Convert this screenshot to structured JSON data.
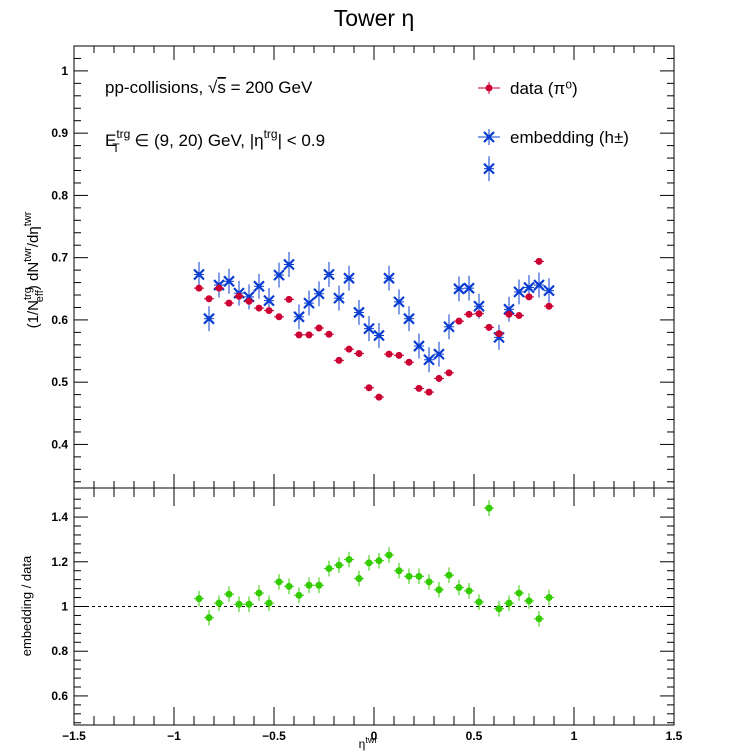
{
  "chart_data": [
    {
      "type": "scatter",
      "title": "Tower η",
      "ylabel": "(1/N_eff^trg) dN^twr/dη^twr",
      "ylim": [
        0.33,
        1.04
      ],
      "xlim": [
        -1.5,
        1.5
      ],
      "yticks": [
        "0.4",
        "0.5",
        "0.6",
        "0.7",
        "0.8",
        "0.9",
        "1"
      ],
      "annotations": [
        {
          "label": "pp-collisions, √s = 200 GeV"
        },
        {
          "label": "E_T^trg ∈ (9, 20) GeV, |η^trg| < 0.9"
        }
      ],
      "legend_position": "top-right",
      "series": [
        {
          "name": "data (π⁰)",
          "color": "#cc0033",
          "marker": "circle",
          "x": [
            -0.875,
            -0.825,
            -0.775,
            -0.725,
            -0.675,
            -0.625,
            -0.575,
            -0.525,
            -0.475,
            -0.425,
            -0.375,
            -0.325,
            -0.275,
            -0.225,
            -0.175,
            -0.125,
            -0.075,
            -0.025,
            0.025,
            0.075,
            0.125,
            0.175,
            0.225,
            0.275,
            0.325,
            0.375,
            0.425,
            0.475,
            0.525,
            0.575,
            0.625,
            0.675,
            0.725,
            0.775,
            0.825,
            0.875
          ],
          "y": [
            0.651,
            0.634,
            0.651,
            0.627,
            0.638,
            0.63,
            0.619,
            0.615,
            0.605,
            0.633,
            0.576,
            0.576,
            0.587,
            0.577,
            0.535,
            0.553,
            0.546,
            0.491,
            0.476,
            0.545,
            0.543,
            0.532,
            0.49,
            0.484,
            0.506,
            0.515,
            0.598,
            0.609,
            0.61,
            0.588,
            0.578,
            0.609,
            0.607,
            0.637,
            0.694,
            0.622
          ],
          "yerr": [
            0.004,
            0.004,
            0.004,
            0.004,
            0.004,
            0.004,
            0.004,
            0.004,
            0.004,
            0.004,
            0.004,
            0.004,
            0.004,
            0.004,
            0.004,
            0.004,
            0.004,
            0.004,
            0.004,
            0.004,
            0.004,
            0.004,
            0.004,
            0.004,
            0.004,
            0.004,
            0.004,
            0.004,
            0.004,
            0.004,
            0.004,
            0.004,
            0.004,
            0.004,
            0.004,
            0.004
          ]
        },
        {
          "name": "embedding (h±)",
          "color": "#0a3dd1",
          "marker": "star",
          "x": [
            -0.875,
            -0.825,
            -0.775,
            -0.725,
            -0.675,
            -0.625,
            -0.575,
            -0.525,
            -0.475,
            -0.425,
            -0.375,
            -0.325,
            -0.275,
            -0.225,
            -0.175,
            -0.125,
            -0.075,
            -0.025,
            0.025,
            0.075,
            0.125,
            0.175,
            0.225,
            0.275,
            0.325,
            0.375,
            0.425,
            0.475,
            0.525,
            0.575,
            0.625,
            0.675,
            0.725,
            0.775,
            0.825,
            0.875
          ],
          "y": [
            0.673,
            0.602,
            0.656,
            0.662,
            0.643,
            0.637,
            0.654,
            0.631,
            0.672,
            0.689,
            0.605,
            0.627,
            0.642,
            0.673,
            0.635,
            0.667,
            0.612,
            0.586,
            0.575,
            0.667,
            0.629,
            0.602,
            0.558,
            0.536,
            0.545,
            0.589,
            0.65,
            0.651,
            0.622,
            0.843,
            0.572,
            0.617,
            0.645,
            0.652,
            0.656,
            0.647
          ],
          "yerr": [
            0.02,
            0.02,
            0.02,
            0.02,
            0.02,
            0.02,
            0.02,
            0.02,
            0.02,
            0.02,
            0.02,
            0.02,
            0.02,
            0.02,
            0.02,
            0.02,
            0.02,
            0.02,
            0.02,
            0.02,
            0.02,
            0.02,
            0.02,
            0.02,
            0.02,
            0.02,
            0.02,
            0.02,
            0.02,
            0.02,
            0.02,
            0.02,
            0.02,
            0.02,
            0.02,
            0.02
          ]
        }
      ]
    },
    {
      "type": "scatter",
      "xlabel": "η^twr",
      "ylabel": "embedding / data",
      "xlim": [
        -1.5,
        1.5
      ],
      "ylim": [
        0.47,
        1.53
      ],
      "xticks": [
        "−1.5",
        "−1",
        "−0.5",
        "0",
        "0.5",
        "1",
        "1.5"
      ],
      "yticks": [
        "0.6",
        "0.8",
        "1",
        "1.2",
        "1.4"
      ],
      "reference_line": 1.0,
      "series": [
        {
          "color": "#33cc00",
          "marker": "circle",
          "x": [
            -0.875,
            -0.825,
            -0.775,
            -0.725,
            -0.675,
            -0.625,
            -0.575,
            -0.525,
            -0.475,
            -0.425,
            -0.375,
            -0.325,
            -0.275,
            -0.225,
            -0.175,
            -0.125,
            -0.075,
            -0.025,
            0.025,
            0.075,
            0.125,
            0.175,
            0.225,
            0.275,
            0.325,
            0.375,
            0.425,
            0.475,
            0.525,
            0.575,
            0.625,
            0.675,
            0.725,
            0.775,
            0.825,
            0.875
          ],
          "y": [
            1.035,
            0.95,
            1.015,
            1.055,
            1.01,
            1.01,
            1.06,
            1.015,
            1.11,
            1.09,
            1.05,
            1.095,
            1.095,
            1.17,
            1.185,
            1.21,
            1.125,
            1.195,
            1.205,
            1.23,
            1.16,
            1.135,
            1.135,
            1.11,
            1.075,
            1.14,
            1.085,
            1.07,
            1.02,
            1.44,
            0.99,
            1.015,
            1.06,
            1.025,
            0.945,
            1.04
          ],
          "yerr": [
            0.035,
            0.035,
            0.035,
            0.035,
            0.035,
            0.035,
            0.035,
            0.035,
            0.035,
            0.035,
            0.035,
            0.035,
            0.035,
            0.035,
            0.035,
            0.035,
            0.035,
            0.035,
            0.035,
            0.035,
            0.035,
            0.035,
            0.035,
            0.035,
            0.035,
            0.035,
            0.035,
            0.035,
            0.035,
            0.035,
            0.035,
            0.035,
            0.035,
            0.035,
            0.035,
            0.035
          ]
        }
      ]
    }
  ],
  "legend": {
    "entry1": "data (π⁰)",
    "entry2": "embedding (h±)"
  }
}
